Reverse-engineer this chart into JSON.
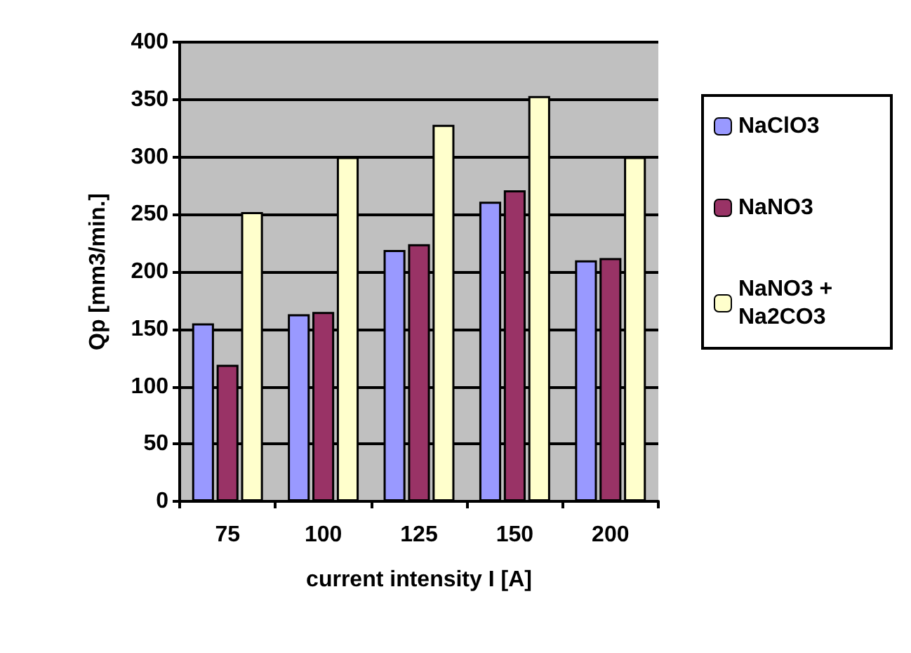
{
  "chart_data": {
    "type": "bar",
    "xlabel": "current intensity I [A]",
    "ylabel": "Qp [mm3/min.]",
    "categories": [
      "75",
      "100",
      "125",
      "150",
      "200"
    ],
    "series": [
      {
        "name": "NaClO3",
        "color": "#9999ff",
        "values": [
          155,
          163,
          219,
          261,
          210
        ]
      },
      {
        "name": "NaNO3",
        "color": "#993366",
        "values": [
          119,
          165,
          224,
          271,
          212
        ]
      },
      {
        "name": "NaNO3 + Na2CO3",
        "color": "#ffffcc",
        "values": [
          252,
          300,
          328,
          353,
          300
        ]
      }
    ],
    "ylim": [
      0,
      400
    ],
    "yticks": [
      0,
      50,
      100,
      150,
      200,
      250,
      300,
      350,
      400
    ],
    "grid": "y",
    "legend": "right"
  }
}
